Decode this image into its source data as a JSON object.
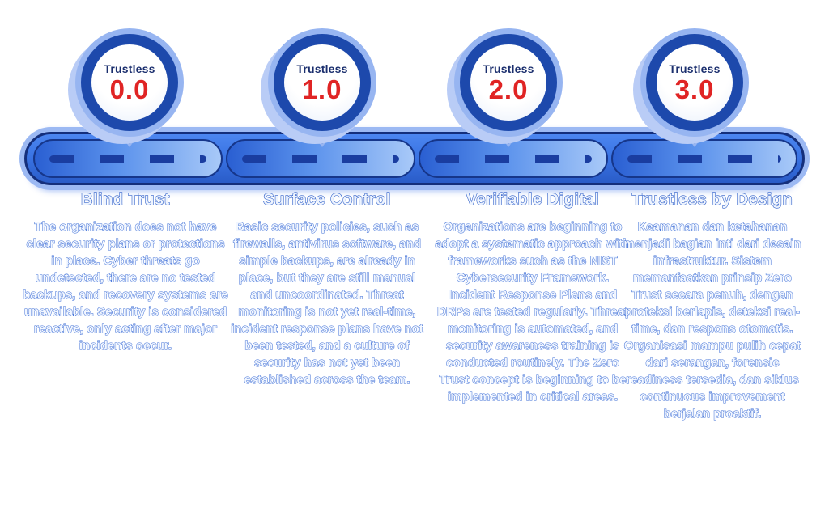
{
  "colors": {
    "halo_blue": "#97b5f1",
    "ring_blue": "#1d49ac",
    "badge_face_white": "#f7fafe",
    "badge_label_navy": "#1b2f6e",
    "version_red": "#e02424",
    "bar_fill_blue": "#3a74e4",
    "bar_border_navy": "#142f7c",
    "segment_gradient_dark": "#2a5fd2",
    "segment_gradient_light": "#a8c9f8",
    "dash_navy": "#1a3da0",
    "text_outline_blue": "#3b6cd6"
  },
  "milestones": [
    {
      "badge_label": "Trustless",
      "version": "0.0",
      "title": "Blind Trust",
      "description": "The organization does not have clear security plans or protections in place. Cyber threats go undetected, there are no tested backups, and recovery systems are unavailable. Security is considered reactive, only acting after major incidents occur."
    },
    {
      "badge_label": "Trustless",
      "version": "1.0",
      "title": "Surface Control",
      "description": "Basic security policies, such as firewalls, antivirus software, and simple backups, are already in place, but they are still manual and uncoordinated. Threat monitoring is not yet real-time, incident response plans have not been tested, and a culture of security has not yet been established across the team."
    },
    {
      "badge_label": "Trustless",
      "version": "2.0",
      "title": "Verifiable Digital",
      "description": "Organizations are beginning to adopt a systematic approach with frameworks such as the NIST Cybersecurity Framework. Incident Response Plans and DRPs are tested regularly. Threat monitoring is automated, and security awareness training is conducted routinely. The Zero Trust concept is beginning to be implemented in critical areas."
    },
    {
      "badge_label": "Trustless",
      "version": "3.0",
      "title": "Trustless by Design",
      "description": "Keamanan dan ketahanan menjadi bagian inti dari desain infrastruktur. Sistem memanfaatkan prinsip Zero Trust secara penuh, dengan proteksi berlapis, deteksi real-time, dan respons otomatis. Organisasi mampu pulih cepat dari serangan, forensic readiness tersedia, dan siklus continuous improvement berjalan proaktif."
    }
  ]
}
